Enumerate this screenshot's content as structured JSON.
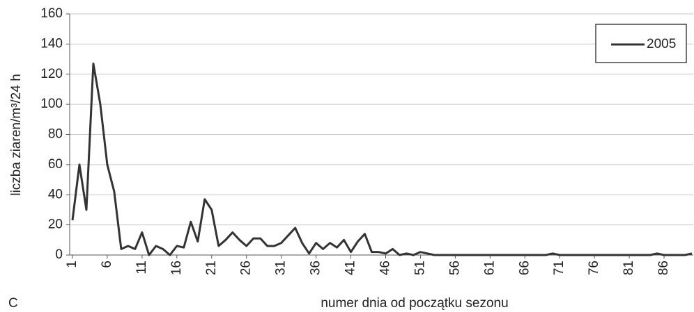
{
  "chart_data": {
    "type": "line",
    "panel_label": "C",
    "x_label": "numer dnia od początku sezonu",
    "y_label": "liczba ziaren/m³/24 h",
    "x": [
      1,
      2,
      3,
      4,
      5,
      6,
      7,
      8,
      9,
      10,
      11,
      12,
      13,
      14,
      15,
      16,
      17,
      18,
      19,
      20,
      21,
      22,
      23,
      24,
      25,
      26,
      27,
      28,
      29,
      30,
      31,
      32,
      33,
      34,
      35,
      36,
      37,
      38,
      39,
      40,
      41,
      42,
      43,
      44,
      45,
      46,
      47,
      48,
      49,
      50,
      51,
      52,
      53,
      54,
      55,
      56,
      57,
      58,
      59,
      60,
      61,
      62,
      63,
      64,
      65,
      66,
      67,
      68,
      69,
      70,
      71,
      72,
      73,
      74,
      75,
      76,
      77,
      78,
      79,
      80,
      81,
      82,
      83,
      84,
      85,
      86,
      87,
      88,
      89,
      90
    ],
    "series": [
      {
        "name": "2005",
        "color": "#333333",
        "values": [
          23,
          60,
          30,
          127,
          100,
          60,
          42,
          4,
          6,
          4,
          15,
          0,
          6,
          4,
          0,
          6,
          5,
          22,
          9,
          37,
          30,
          6,
          10,
          15,
          10,
          6,
          11,
          11,
          6,
          6,
          8,
          13,
          18,
          8,
          1,
          8,
          4,
          8,
          5,
          10,
          2,
          9,
          14,
          2,
          2,
          1,
          4,
          0,
          1,
          0,
          2,
          1,
          0,
          0,
          0,
          0,
          0,
          0,
          0,
          0,
          0,
          0,
          0,
          0,
          0,
          0,
          0,
          0,
          0,
          1,
          0,
          0,
          0,
          0,
          0,
          0,
          0,
          0,
          0,
          0,
          0,
          0,
          0,
          0,
          1,
          0,
          0,
          0,
          0,
          1
        ]
      }
    ],
    "xlim": [
      0.6,
      90.2
    ],
    "xticks": [
      1,
      6,
      11,
      16,
      21,
      26,
      31,
      36,
      41,
      46,
      51,
      56,
      61,
      66,
      71,
      76,
      81,
      86
    ],
    "ylim": [
      0,
      160
    ],
    "yticks": [
      0,
      20,
      40,
      60,
      80,
      100,
      120,
      140,
      160
    ],
    "grid": true,
    "legend": "upper-right"
  }
}
